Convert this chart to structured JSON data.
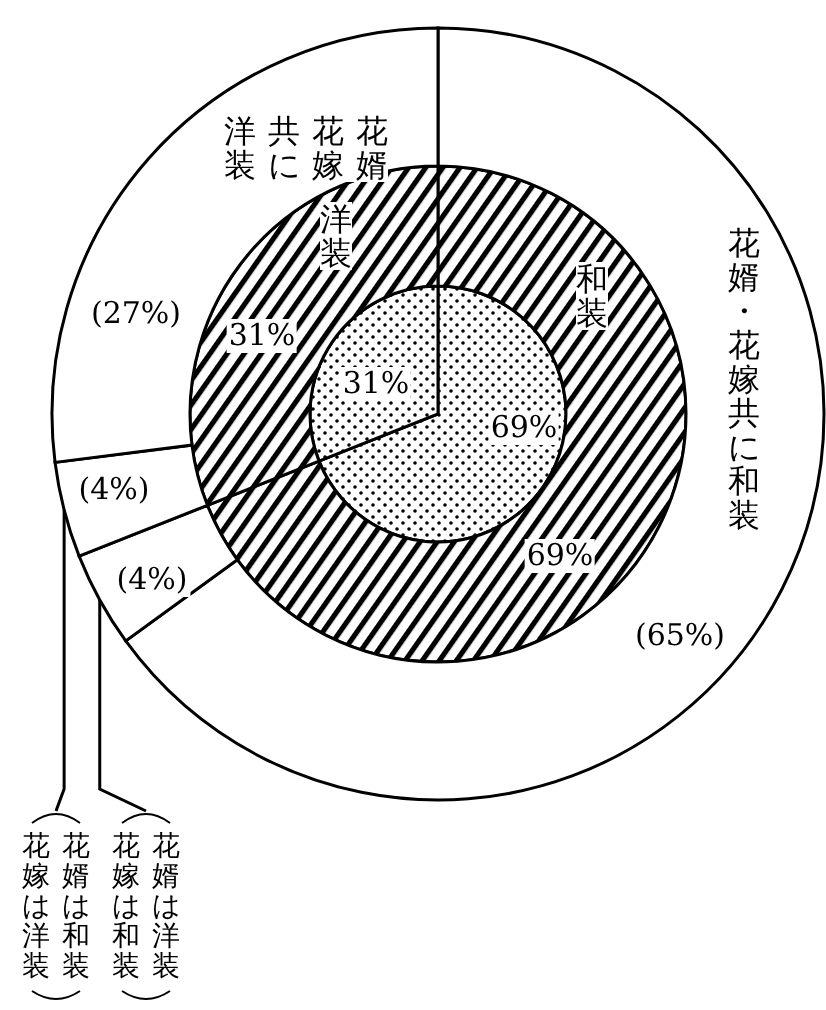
{
  "chart_data": [
    {
      "type": "pie",
      "categories": [
        null,
        null
      ],
      "values": [
        69,
        31
      ],
      "colors": [
        "#000000",
        "#000000"
      ],
      "value_labels": [
        "69%",
        "31%"
      ]
    },
    {
      "type": "donut",
      "categories": [
        "和装",
        "洋装"
      ],
      "values": [
        69,
        31
      ],
      "colors": [
        "#000000",
        "#000000"
      ],
      "value_labels": [
        "69%",
        "31%"
      ]
    },
    {
      "type": "donut",
      "categories": [
        "花婿・花嫁共に和装",
        "花婿は洋装花嫁は和装",
        "花婿は和装花嫁は洋装",
        "花婿花嫁共に洋装"
      ],
      "values": [
        65,
        4,
        4,
        27
      ],
      "colors": [
        "#ffffff",
        "#ffffff",
        "#ffffff",
        "#ffffff"
      ],
      "value_labels": [
        "(65%)",
        "(4%)",
        "(4%)",
        "(27%)"
      ]
    }
  ]
}
